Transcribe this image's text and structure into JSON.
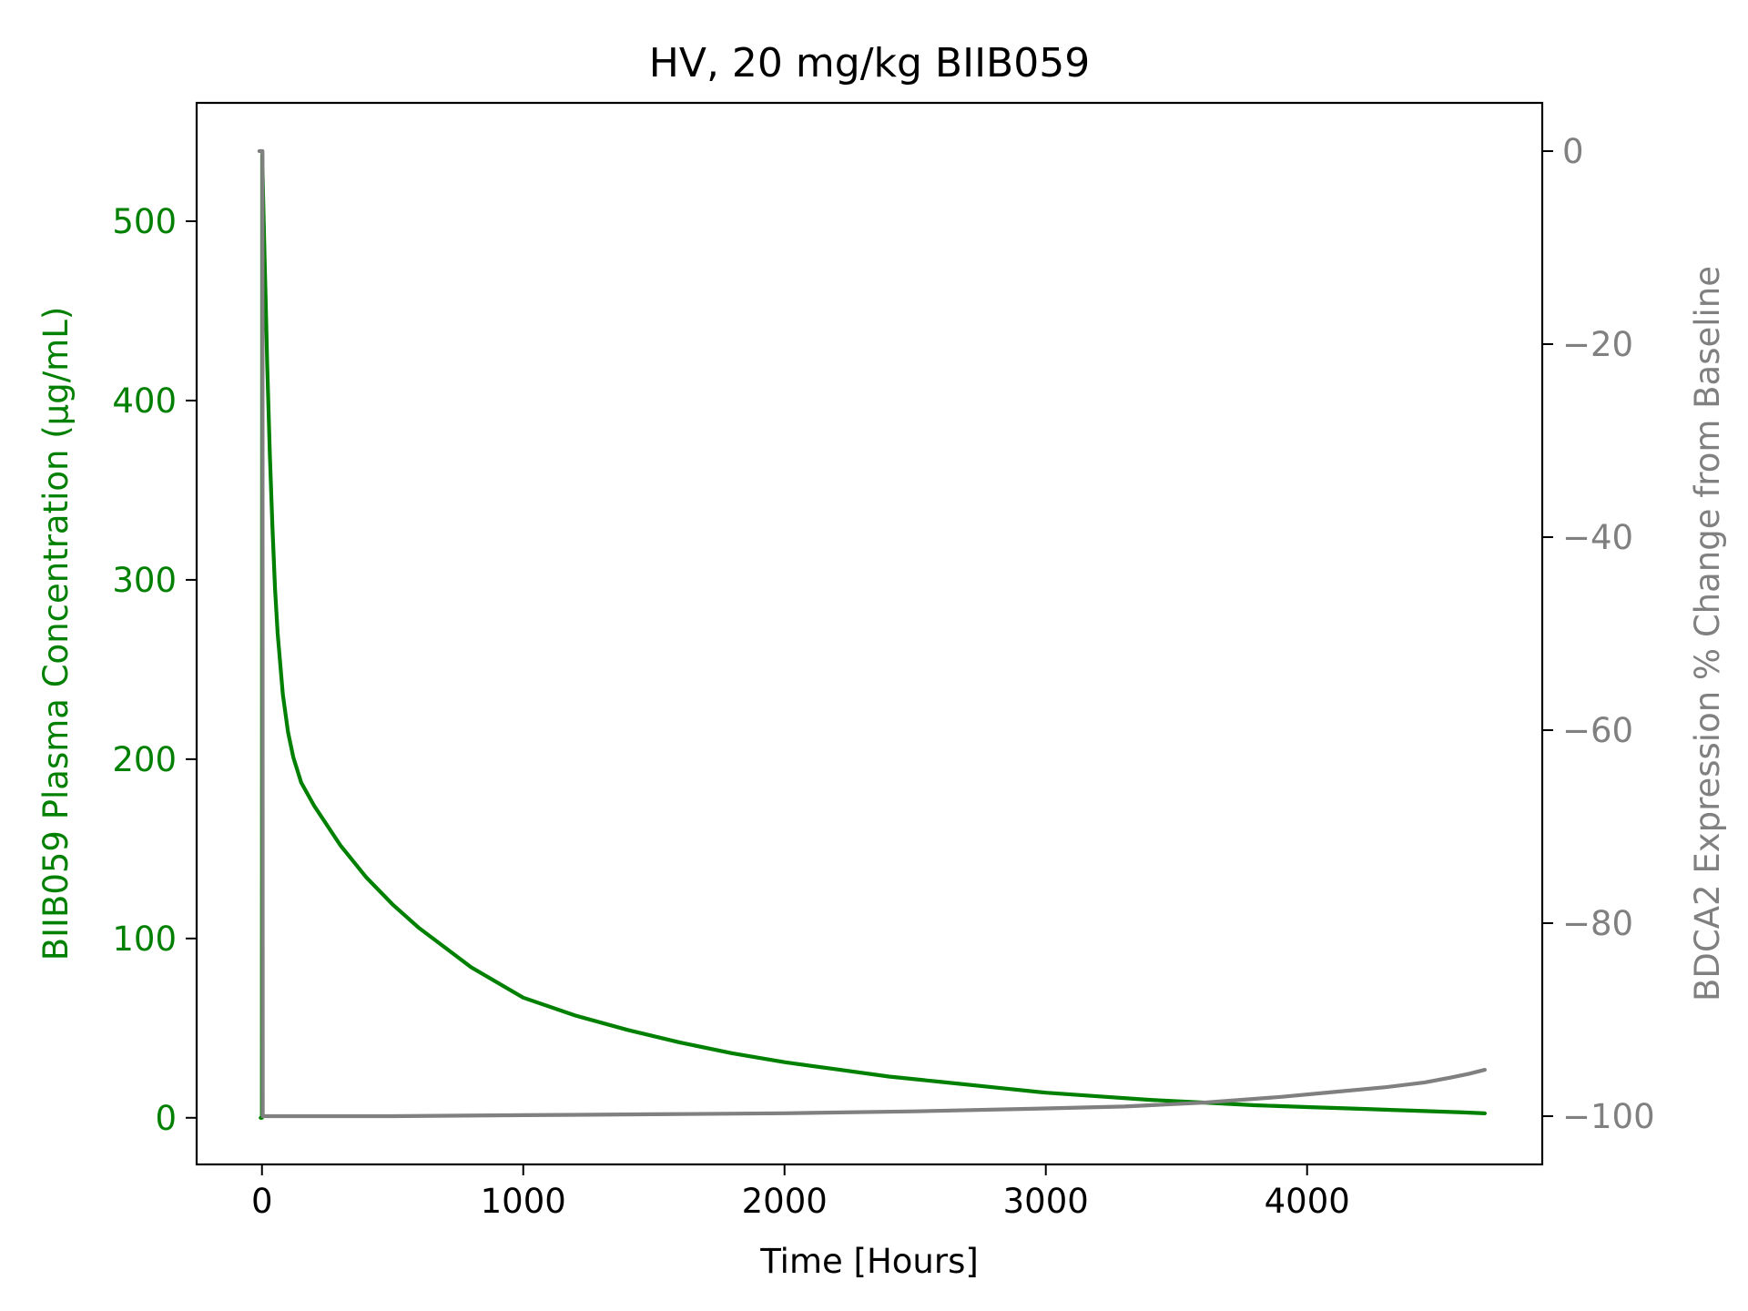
{
  "chart_data": {
    "type": "line",
    "title": "HV, 20 mg/kg BIIB059",
    "xlabel": "Time [Hours]",
    "ylabel_left": "BIIB059 Plasma Concentration (µg/mL)",
    "ylabel_right": "BDCA2 Expression % Change from Baseline",
    "xlim": [
      -250,
      4900
    ],
    "ylim_left": [
      -26,
      566
    ],
    "ylim_right": [
      -105,
      5
    ],
    "xticks": [
      0,
      1000,
      2000,
      3000,
      4000
    ],
    "xtick_labels": [
      "0",
      "1000",
      "2000",
      "3000",
      "4000"
    ],
    "yticks_left": [
      0,
      100,
      200,
      300,
      400,
      500
    ],
    "ytick_labels_left": [
      "0",
      "100",
      "200",
      "300",
      "400",
      "500"
    ],
    "yticks_right": [
      0,
      -20,
      -40,
      -60,
      -80,
      -100
    ],
    "ytick_labels_right": [
      "0",
      "−20",
      "−40",
      "−60",
      "−80",
      "−100"
    ],
    "grid": false,
    "colors": {
      "left_axis": "#008000",
      "right_axis": "#808080",
      "axes": "#000000"
    },
    "series": [
      {
        "axis": "left",
        "color": "#008000",
        "x": [
          -5,
          0,
          1,
          5,
          10,
          15,
          20,
          30,
          40,
          50,
          60,
          80,
          100,
          120,
          150,
          200,
          300,
          400,
          500,
          600,
          800,
          1000,
          1200,
          1400,
          1600,
          1800,
          2000,
          2200,
          2400,
          2600,
          2800,
          3000,
          3200,
          3400,
          3600,
          3800,
          4000,
          4200,
          4400,
          4600,
          4680
        ],
        "y": [
          0,
          0,
          537,
          510,
          480,
          450,
          420,
          370,
          330,
          295,
          270,
          236,
          215,
          201,
          187,
          174,
          152,
          134,
          119,
          106,
          84,
          67,
          57,
          49,
          42,
          36,
          31,
          27,
          23,
          20,
          17,
          14,
          12,
          10,
          8.5,
          7,
          6,
          5,
          4,
          3,
          2.5
        ]
      },
      {
        "axis": "right",
        "color": "#808080",
        "x": [
          -10,
          0,
          2,
          3,
          200,
          500,
          1000,
          1500,
          2000,
          2500,
          3000,
          3300,
          3600,
          3900,
          4100,
          4300,
          4450,
          4550,
          4620,
          4680
        ],
        "y": [
          0,
          0,
          0,
          -100,
          -100,
          -100,
          -99.9,
          -99.8,
          -99.7,
          -99.5,
          -99.2,
          -99,
          -98.6,
          -98,
          -97.5,
          -97,
          -96.5,
          -96,
          -95.6,
          -95.2
        ]
      }
    ]
  }
}
